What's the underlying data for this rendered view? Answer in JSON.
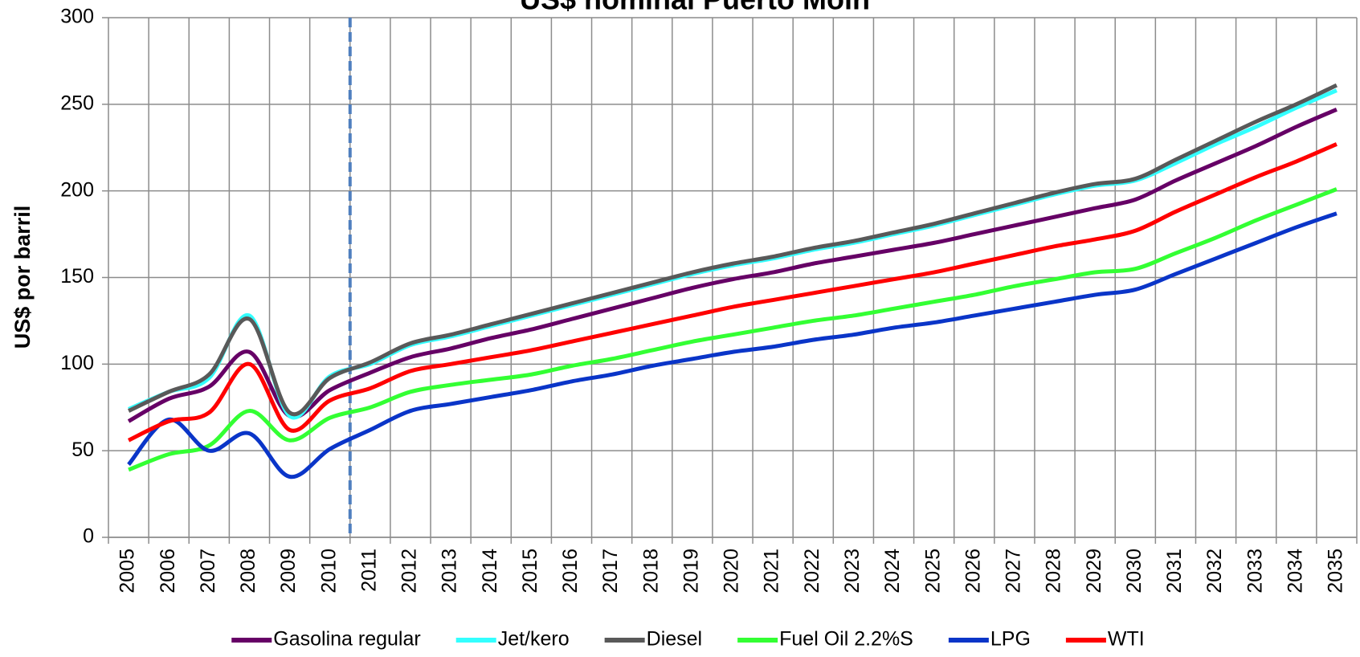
{
  "chart_data": {
    "type": "line",
    "title": "US$ nominal Puerto Moín",
    "y_label": "US$ por barril",
    "categories": [
      "2005",
      "2006",
      "2007",
      "2008",
      "2009",
      "2010",
      "2011",
      "2012",
      "2013",
      "2014",
      "2015",
      "2016",
      "2017",
      "2018",
      "2019",
      "2020",
      "2021",
      "2022",
      "2023",
      "2024",
      "2025",
      "2026",
      "2027",
      "2028",
      "2029",
      "2030",
      "2031",
      "2032",
      "2033",
      "2034",
      "2035"
    ],
    "series": [
      {
        "name": "Gasolina regular",
        "color": "#660066",
        "values": [
          67,
          80,
          87,
          107,
          70,
          85,
          95,
          104,
          109,
          115,
          120,
          126,
          132,
          138,
          144,
          149,
          153,
          158,
          162,
          166,
          170,
          175,
          180,
          185,
          190,
          195,
          206,
          216,
          226,
          237,
          247
        ]
      },
      {
        "name": "Jet/kero",
        "color": "#33ffff",
        "values": [
          74,
          84,
          92,
          128,
          70,
          93,
          100,
          111,
          116,
          122,
          128,
          134,
          140,
          146,
          152,
          157,
          161,
          166,
          170,
          175,
          180,
          186,
          192,
          198,
          203,
          206,
          216,
          227,
          237,
          248,
          258
        ]
      },
      {
        "name": "Diesel",
        "color": "#595959",
        "values": [
          73,
          84,
          94,
          126,
          72,
          92,
          101,
          112,
          117,
          123,
          129,
          135,
          141,
          147,
          153,
          158,
          162,
          167,
          171,
          176,
          181,
          187,
          193,
          199,
          204,
          207,
          218,
          229,
          240,
          250,
          261
        ]
      },
      {
        "name": "Fuel Oil 2.2%S",
        "color": "#33ff33",
        "values": [
          39,
          48,
          53,
          73,
          56,
          69,
          75,
          84,
          88,
          91,
          94,
          99,
          103,
          108,
          113,
          117,
          121,
          125,
          128,
          132,
          136,
          140,
          145,
          149,
          153,
          155,
          164,
          173,
          183,
          192,
          201
        ]
      },
      {
        "name": "LPG",
        "color": "#0a35c8",
        "values": [
          42,
          68,
          50,
          60,
          35,
          51,
          62,
          73,
          77,
          81,
          85,
          90,
          94,
          99,
          103,
          107,
          110,
          114,
          117,
          121,
          124,
          128,
          132,
          136,
          140,
          143,
          152,
          161,
          170,
          179,
          187
        ]
      },
      {
        "name": "WTI",
        "color": "#ff0000",
        "values": [
          56,
          67,
          72,
          100,
          62,
          79,
          86,
          96,
          100,
          104,
          108,
          113,
          118,
          123,
          128,
          133,
          137,
          141,
          145,
          149,
          153,
          158,
          163,
          168,
          172,
          177,
          188,
          198,
          208,
          217,
          227
        ]
      }
    ],
    "ylim": [
      0,
      300
    ],
    "yticks": [
      0,
      50,
      100,
      150,
      200,
      250,
      300
    ],
    "grid": true,
    "legend": "bottom"
  }
}
